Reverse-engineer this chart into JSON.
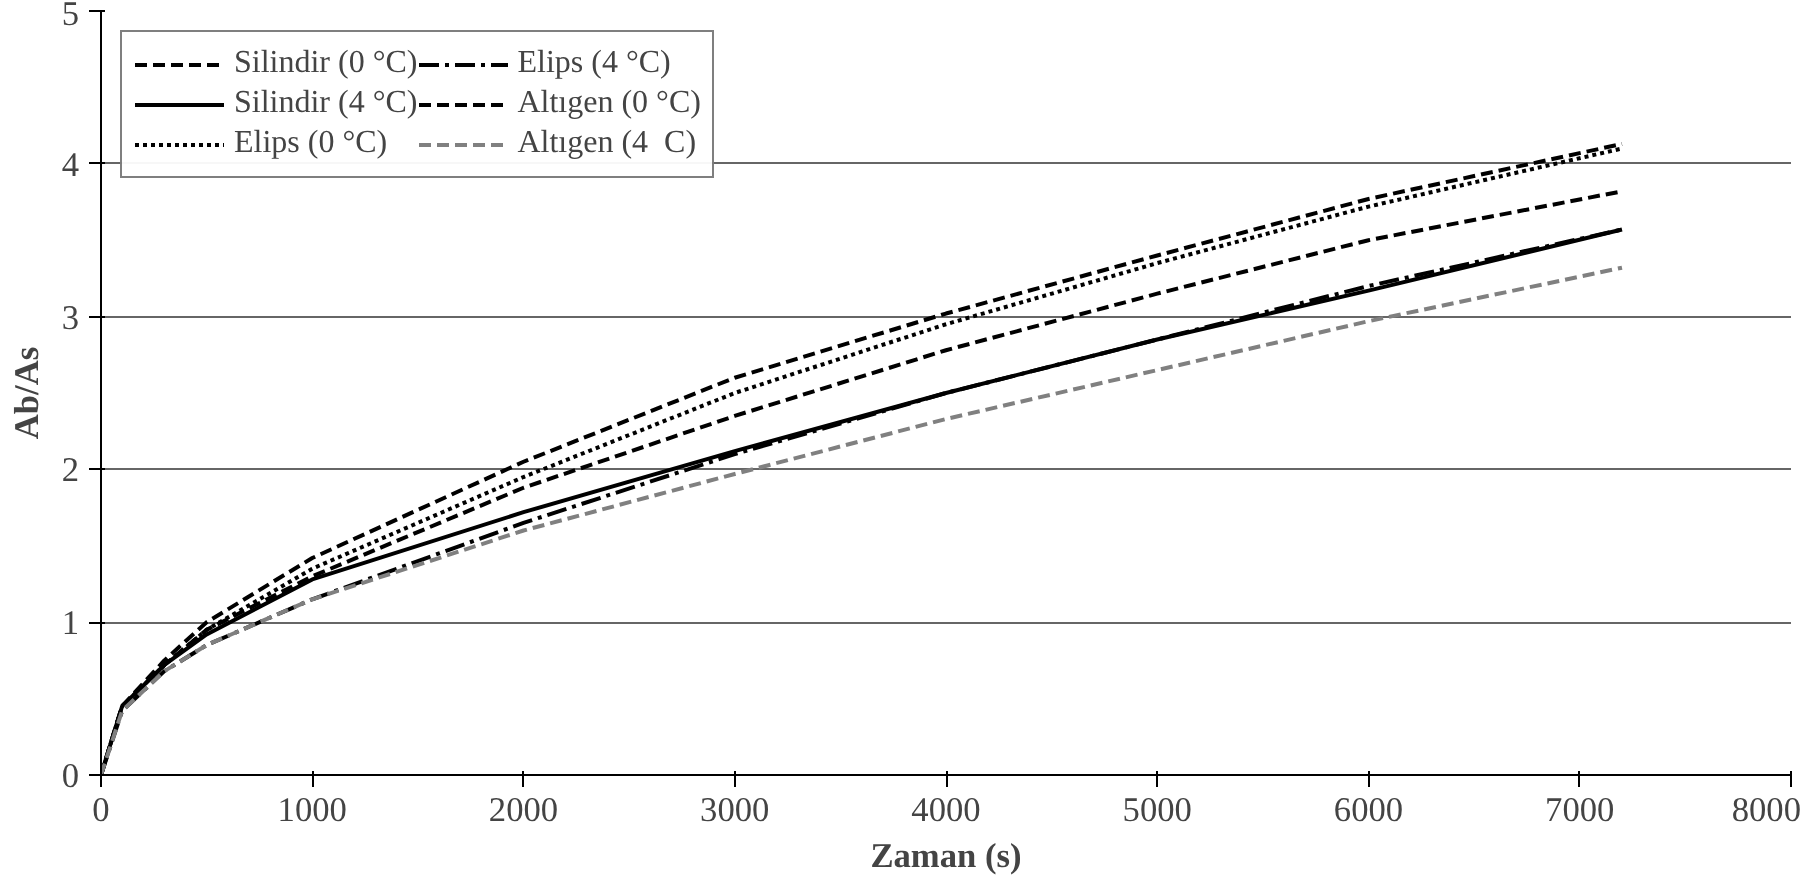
{
  "chart_data": {
    "type": "line",
    "xlabel": "Zaman (s)",
    "ylabel": "Ab/As",
    "x": [
      0,
      100,
      300,
      500,
      1000,
      2000,
      3000,
      4000,
      5000,
      6000,
      7200
    ],
    "series": [
      {
        "name": "Silindir (0 °C)",
        "color": "#000000",
        "line_style": "dashed",
        "values": [
          0,
          0.45,
          0.75,
          1.0,
          1.42,
          2.05,
          2.6,
          3.02,
          3.4,
          3.77,
          4.13
        ]
      },
      {
        "name": "Silindir (4 °C)",
        "color": "#000000",
        "line_style": "solid",
        "values": [
          0,
          0.45,
          0.72,
          0.92,
          1.28,
          1.72,
          2.12,
          2.5,
          2.85,
          3.17,
          3.57
        ]
      },
      {
        "name": "Elips (0 °C)",
        "color": "#000000",
        "line_style": "dotted",
        "values": [
          0,
          0.45,
          0.72,
          0.95,
          1.35,
          1.95,
          2.5,
          2.95,
          3.35,
          3.72,
          4.1
        ]
      },
      {
        "name": "Elips (4 °C)",
        "color": "#000000",
        "line_style": "dashdot",
        "values": [
          0,
          0.42,
          0.68,
          0.85,
          1.15,
          1.65,
          2.1,
          2.5,
          2.85,
          3.2,
          3.57
        ]
      },
      {
        "name": "Altıgen (0 °C)",
        "color": "#000000",
        "line_style": "dashed",
        "values": [
          0,
          0.45,
          0.72,
          0.95,
          1.3,
          1.88,
          2.35,
          2.78,
          3.15,
          3.5,
          3.82
        ]
      },
      {
        "name": "Altıgen (4  C)",
        "color": "#808080",
        "line_style": "dashed",
        "values": [
          0,
          0.42,
          0.68,
          0.85,
          1.15,
          1.6,
          1.97,
          2.33,
          2.65,
          2.97,
          3.32
        ]
      }
    ],
    "xlim": [
      0,
      8000
    ],
    "xticks": [
      0,
      1000,
      2000,
      3000,
      4000,
      5000,
      6000,
      7000,
      8000
    ],
    "ylim": [
      0,
      5
    ],
    "yticks": [
      0,
      1,
      2,
      3,
      4,
      5
    ],
    "grid": "y",
    "legend": "top left",
    "marker": "none"
  }
}
